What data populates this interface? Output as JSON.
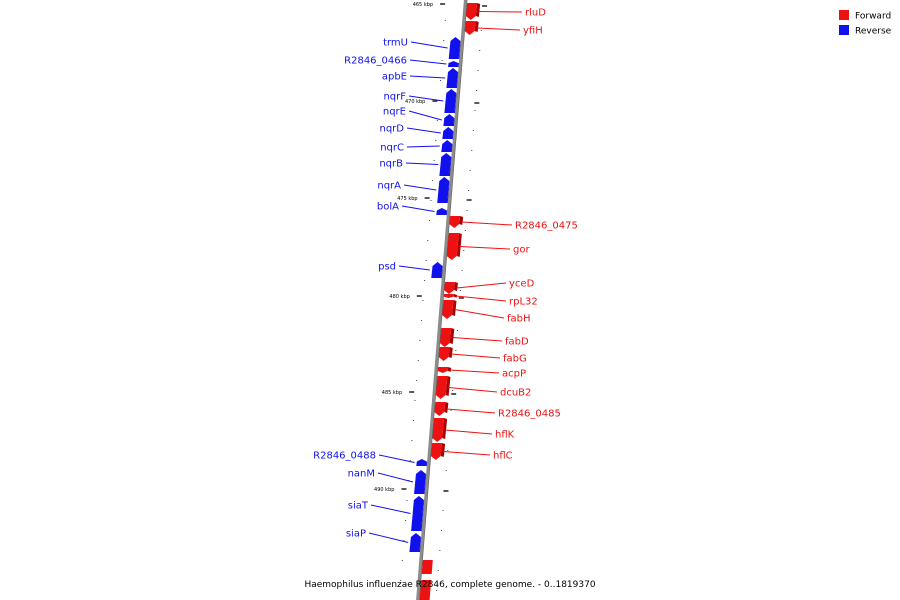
{
  "caption": "Haemophilus influenzae R2846, complete genome. - 0..1819370",
  "colors": {
    "forward": "#ee1111",
    "forward_side": "#aa0000",
    "reverse": "#1111ee",
    "reverse_side": "#0000aa",
    "backbone": "#8c8c8c"
  },
  "legend": [
    {
      "key": "forward",
      "label": "Forward"
    },
    {
      "key": "reverse",
      "label": "Reverse"
    }
  ],
  "ticks": [
    "465 kbp",
    "470 kbp",
    "475 kbp",
    "480 kbp",
    "485 kbp",
    "490 kbp"
  ],
  "genes": [
    {
      "name": "rluD",
      "strand": "forward"
    },
    {
      "name": "yfiH",
      "strand": "forward"
    },
    {
      "name": "trmU",
      "strand": "reverse"
    },
    {
      "name": "R2846_0466",
      "strand": "reverse"
    },
    {
      "name": "apbE",
      "strand": "reverse"
    },
    {
      "name": "nqrF",
      "strand": "reverse"
    },
    {
      "name": "nqrE",
      "strand": "reverse"
    },
    {
      "name": "nqrD",
      "strand": "reverse"
    },
    {
      "name": "nqrC",
      "strand": "reverse"
    },
    {
      "name": "nqrB",
      "strand": "reverse"
    },
    {
      "name": "nqrA",
      "strand": "reverse"
    },
    {
      "name": "bolA",
      "strand": "reverse"
    },
    {
      "name": "R2846_0475",
      "strand": "forward"
    },
    {
      "name": "gor",
      "strand": "forward"
    },
    {
      "name": "psd",
      "strand": "reverse"
    },
    {
      "name": "yceD",
      "strand": "forward"
    },
    {
      "name": "rpL32",
      "strand": "forward"
    },
    {
      "name": "fabH",
      "strand": "forward"
    },
    {
      "name": "fabD",
      "strand": "forward"
    },
    {
      "name": "fabG",
      "strand": "forward"
    },
    {
      "name": "acpP",
      "strand": "forward"
    },
    {
      "name": "dcuB2",
      "strand": "forward"
    },
    {
      "name": "R2846_0485",
      "strand": "forward"
    },
    {
      "name": "hflK",
      "strand": "forward"
    },
    {
      "name": "hflC",
      "strand": "forward"
    },
    {
      "name": "R2846_0488",
      "strand": "reverse"
    },
    {
      "name": "nanM",
      "strand": "reverse"
    },
    {
      "name": "siaT",
      "strand": "reverse"
    },
    {
      "name": "siaP",
      "strand": "reverse"
    }
  ]
}
